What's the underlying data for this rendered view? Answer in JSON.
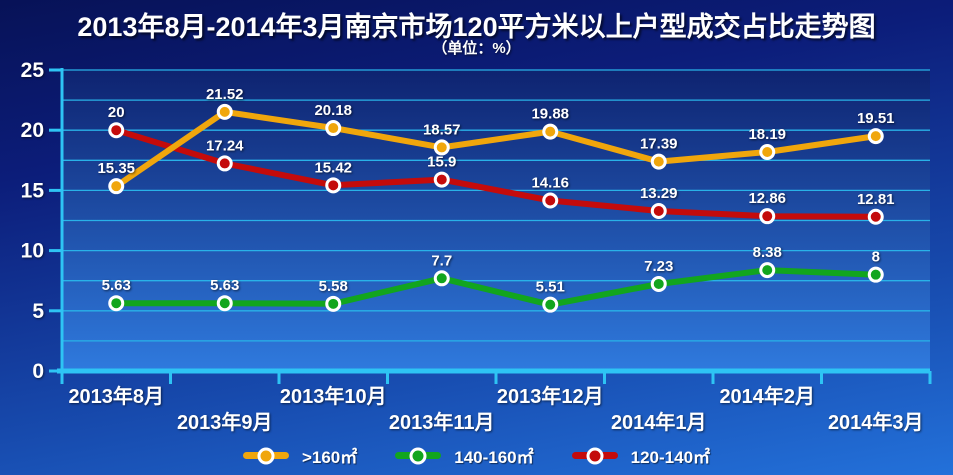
{
  "title": "2013年8月-2014年3月南京市场120平方米以上户型成交占比走势图",
  "subtitle": "（单位：%）",
  "chart_data": {
    "type": "line",
    "title": "2013年8月-2014年3月南京市场120平方米以上户型成交占比走势图",
    "subtitle": "（单位：%）",
    "unit": "%",
    "categories": [
      "2013年8月",
      "2013年9月",
      "2013年10月",
      "2013年11月",
      "2013年12月",
      "2014年1月",
      "2014年2月",
      "2014年3月"
    ],
    "series": [
      {
        "name": ">160㎡",
        "color": "#F0A60C",
        "values": [
          15.35,
          21.52,
          20.18,
          18.57,
          19.88,
          17.39,
          18.19,
          19.51
        ]
      },
      {
        "name": "140-160㎡",
        "color": "#12A51E",
        "values": [
          5.63,
          5.63,
          5.58,
          7.7,
          5.51,
          7.23,
          8.38,
          8
        ]
      },
      {
        "name": "120-140㎡",
        "color": "#C40B0B",
        "values": [
          20,
          17.24,
          15.42,
          15.9,
          14.16,
          13.29,
          12.86,
          12.81
        ]
      }
    ],
    "ylim": [
      0,
      25
    ],
    "y_tick_step": 5,
    "gridline_step": 2.5,
    "grid": true,
    "legend_position": "bottom",
    "xlabel": "",
    "ylabel": "",
    "x_labels_staggered": true
  },
  "colors": {
    "axis": "#2EC4F4",
    "gridline": "#29B2E8",
    "marker_ring": "#FFFFFF",
    "text": "#FFFFFF",
    "plot_bg_top": "#0E2370",
    "plot_bg_bottom": "#2F7ADE",
    "slide_bg_top": "#071257",
    "slide_bg_bottom": "#2371DA"
  }
}
